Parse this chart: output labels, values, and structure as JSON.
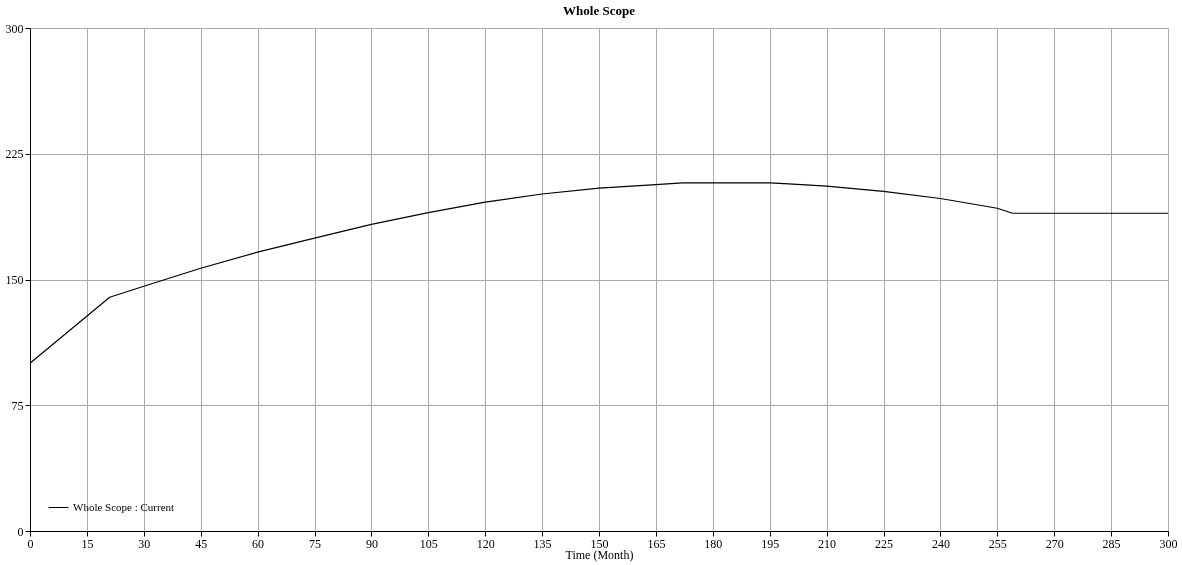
{
  "chart_data": {
    "type": "line",
    "title": "Whole Scope",
    "xlabel": "Time (Month)",
    "x": [
      0,
      21,
      30,
      45,
      60,
      75,
      90,
      105,
      120,
      135,
      150,
      165,
      172,
      180,
      195,
      200,
      210,
      225,
      240,
      255,
      259,
      270,
      285,
      300
    ],
    "series": [
      {
        "name": "Whole Scope : Current",
        "color": "#000000",
        "values": [
          100,
          139.4,
          146,
          156.7,
          166.3,
          174.7,
          182.9,
          189.9,
          196.2,
          201,
          204.5,
          206.6,
          207.6,
          207.6,
          207.6,
          207,
          205.7,
          202.6,
          198.3,
          192.5,
          189.5,
          189.5,
          189.5,
          189.5
        ]
      }
    ],
    "xlim": [
      0,
      300
    ],
    "xticks": [
      0,
      15,
      30,
      45,
      60,
      75,
      90,
      105,
      120,
      135,
      150,
      165,
      180,
      195,
      210,
      225,
      240,
      255,
      270,
      285,
      300
    ],
    "ylim": [
      0,
      300
    ],
    "yticks": [
      0,
      75,
      150,
      225,
      300
    ],
    "grid": true,
    "legend": "bottom left",
    "line_style": "solid"
  }
}
